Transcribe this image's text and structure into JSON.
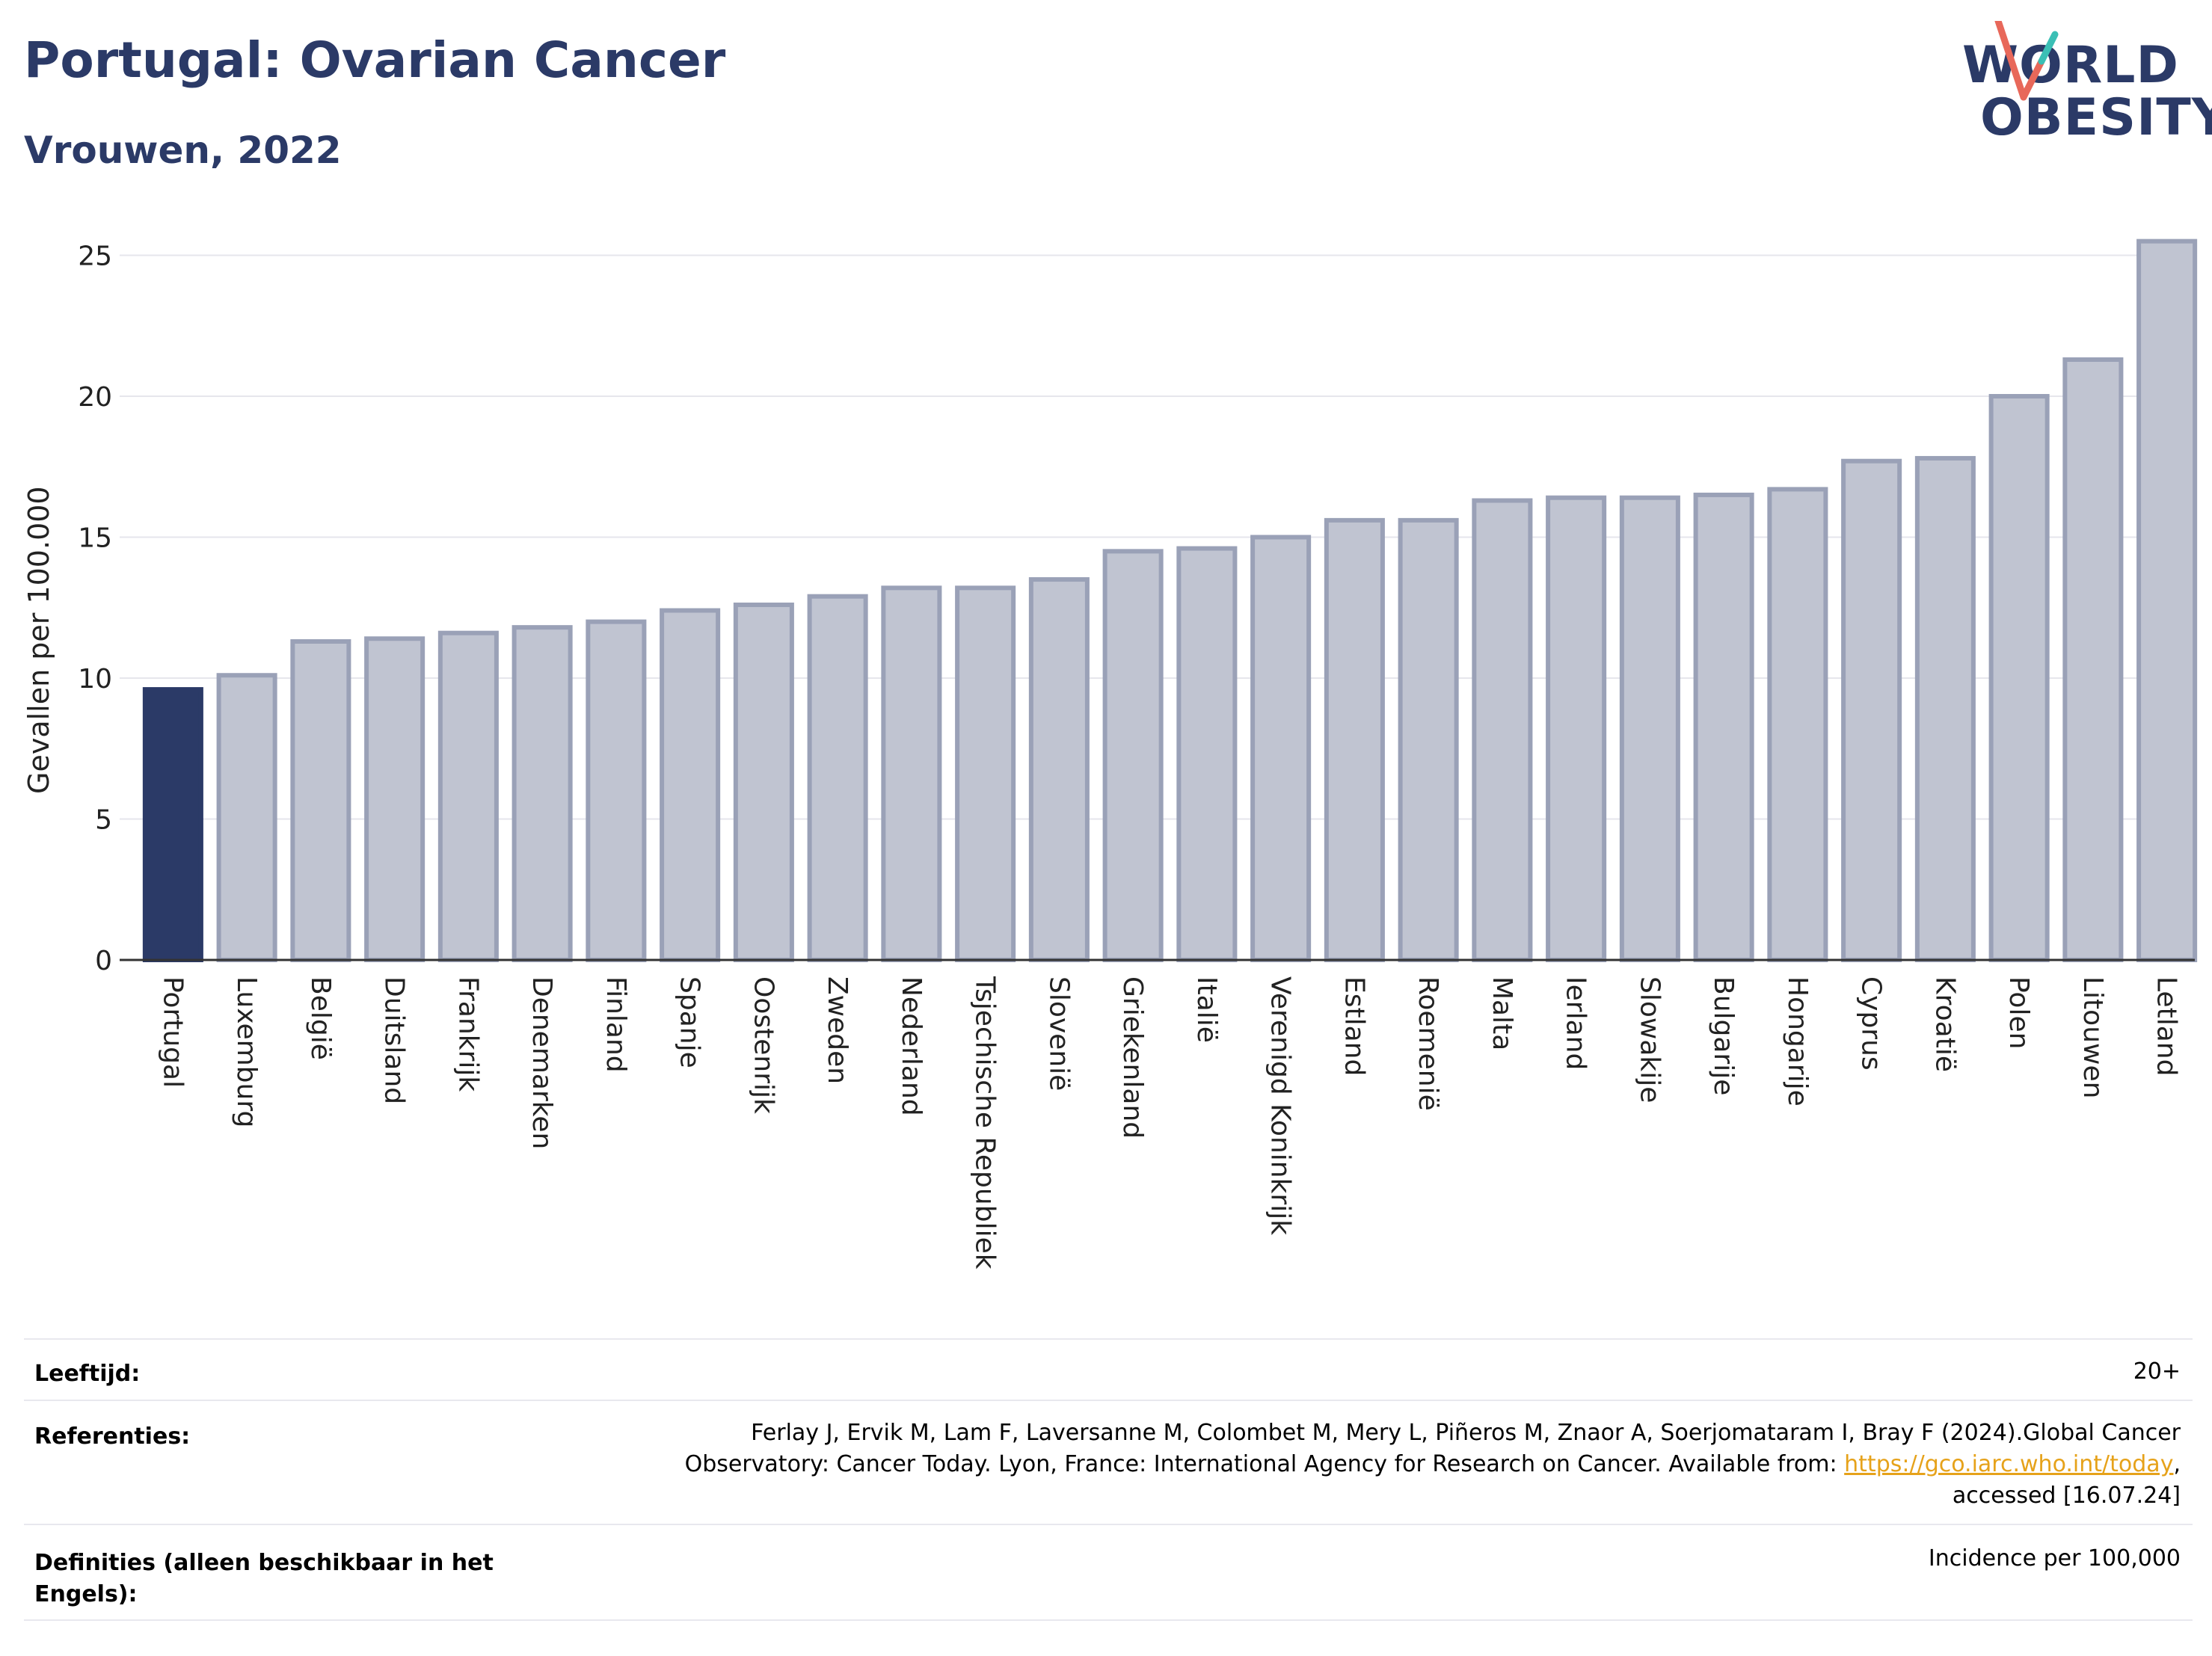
{
  "header": {
    "title": "Portugal: Ovarian Cancer",
    "subtitle": "Vrouwen, 2022"
  },
  "logo": {
    "line1": "WORLD",
    "line2": "OBESITY",
    "accent_teal": "#3bbfb5",
    "accent_coral": "#e8685a"
  },
  "colors": {
    "highlight": "#2b3a67",
    "bar_fill": "#c0c4d1",
    "bar_stroke": "#9aa1b7",
    "grid": "#e6e6ec"
  },
  "chart_data": {
    "type": "bar",
    "title": "Portugal: Ovarian Cancer",
    "subtitle": "Vrouwen, 2022",
    "xlabel": "",
    "ylabel": "Gevallen per 100.000",
    "ylim": [
      0,
      26
    ],
    "yticks": [
      0,
      5,
      10,
      15,
      20,
      25
    ],
    "grid": true,
    "highlight_category": "Portugal",
    "categories": [
      "Portugal",
      "Luxemburg",
      "België",
      "Duitsland",
      "Frankrijk",
      "Denemarken",
      "Finland",
      "Spanje",
      "Oostenrijk",
      "Zweden",
      "Nederland",
      "Tsjechische Republiek",
      "Slovenië",
      "Griekenland",
      "Italië",
      "Verenigd Koninkrijk",
      "Estland",
      "Roemenië",
      "Malta",
      "Ierland",
      "Slowakije",
      "Bulgarije",
      "Hongarije",
      "Cyprus",
      "Kroatië",
      "Polen",
      "Litouwen",
      "Letland"
    ],
    "values": [
      9.6,
      10.1,
      11.3,
      11.4,
      11.6,
      11.8,
      12.0,
      12.4,
      12.6,
      12.9,
      13.2,
      13.2,
      13.5,
      14.5,
      14.6,
      15.0,
      15.6,
      15.6,
      16.3,
      16.4,
      16.4,
      16.5,
      16.7,
      17.7,
      17.8,
      20.0,
      21.3,
      25.5
    ]
  },
  "info": {
    "age_label": "Leeftijd:",
    "age_value": "20+",
    "ref_label": "Referenties:",
    "ref_line1": "Ferlay J, Ervik M, Lam F, Laversanne M, Colombet M, Mery L, Piñeros M, Znaor A, Soerjomataram I, Bray F (2024).Global Cancer",
    "ref_line2_pre": "Observatory: Cancer Today. Lyon, France: International Agency for Research on Cancer. Available from: ",
    "ref_link": "https://gco.iarc.who.int/today",
    "ref_line2_post": ",",
    "ref_line3": "accessed [16.07.24]",
    "def_label_line1": "Definities (alleen beschikbaar in het",
    "def_label_line2": "Engels):",
    "def_value": "Incidence per 100,000"
  }
}
